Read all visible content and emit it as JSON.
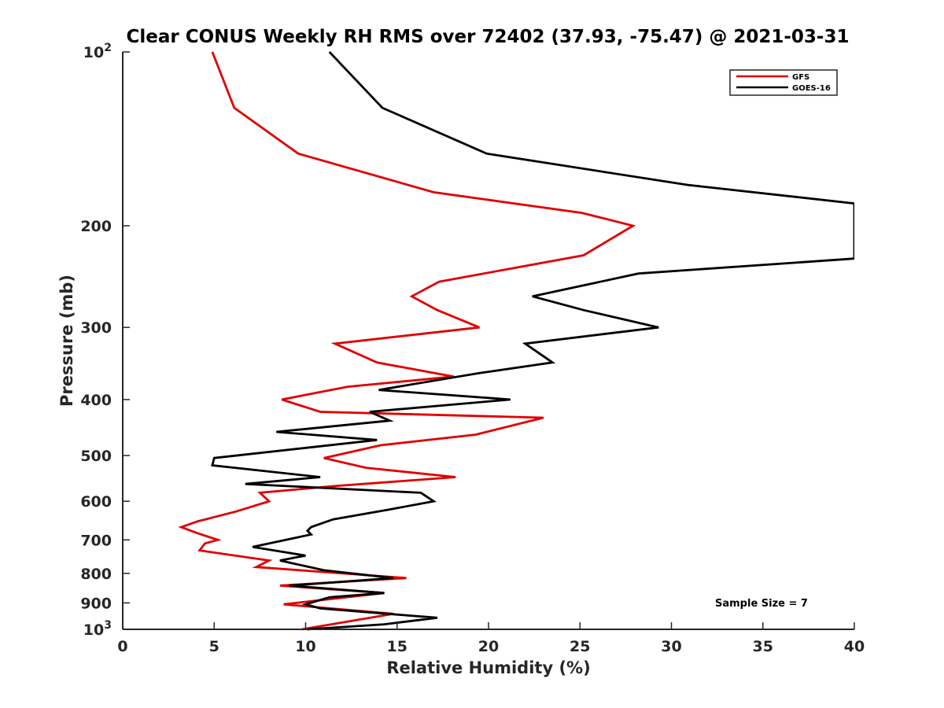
{
  "chart_data": {
    "type": "line",
    "title": "Clear CONUS Weekly RH RMS over 72402 (37.93, -75.47) @ 2021-03-31",
    "xlabel": "Relative Humidity (%)",
    "ylabel": "Pressure (mb)",
    "xlim": [
      0,
      40
    ],
    "ylim": [
      100,
      1000
    ],
    "yscale": "log",
    "y_reversed": true,
    "grid": false,
    "legend_position": "top-right",
    "x_ticks": [
      {
        "value": 0,
        "label": "0"
      },
      {
        "value": 5,
        "label": "5"
      },
      {
        "value": 10,
        "label": "10"
      },
      {
        "value": 15,
        "label": "15"
      },
      {
        "value": 20,
        "label": "20"
      },
      {
        "value": 25,
        "label": "25"
      },
      {
        "value": 30,
        "label": "30"
      },
      {
        "value": 35,
        "label": "35"
      },
      {
        "value": 40,
        "label": "40"
      }
    ],
    "y_ticks": [
      {
        "value": 100,
        "label": "10",
        "sup": "2"
      },
      {
        "value": 200,
        "label": "200",
        "sup": ""
      },
      {
        "value": 300,
        "label": "300",
        "sup": ""
      },
      {
        "value": 400,
        "label": "400",
        "sup": ""
      },
      {
        "value": 500,
        "label": "500",
        "sup": ""
      },
      {
        "value": 600,
        "label": "600",
        "sup": ""
      },
      {
        "value": 700,
        "label": "700",
        "sup": ""
      },
      {
        "value": 800,
        "label": "800",
        "sup": ""
      },
      {
        "value": 900,
        "label": "900",
        "sup": ""
      },
      {
        "value": 1000,
        "label": "10",
        "sup": "3"
      }
    ],
    "annotation": "Sample Size = 7",
    "series": [
      {
        "name": "GFS",
        "color": "#e00000",
        "points": [
          [
            4.9,
            100
          ],
          [
            6.1,
            125
          ],
          [
            9.6,
            150
          ],
          [
            17.0,
            175
          ],
          [
            25.1,
            190
          ],
          [
            27.9,
            200
          ],
          [
            25.2,
            225
          ],
          [
            17.3,
            250
          ],
          [
            15.8,
            265
          ],
          [
            17.2,
            280
          ],
          [
            19.5,
            300
          ],
          [
            11.6,
            320
          ],
          [
            13.9,
            345
          ],
          [
            18.1,
            365
          ],
          [
            12.3,
            380
          ],
          [
            8.7,
            400
          ],
          [
            10.8,
            420
          ],
          [
            23.0,
            430
          ],
          [
            19.3,
            460
          ],
          [
            14.1,
            480
          ],
          [
            11.0,
            505
          ],
          [
            13.3,
            525
          ],
          [
            18.2,
            545
          ],
          [
            11.5,
            565
          ],
          [
            7.5,
            580
          ],
          [
            8.0,
            600
          ],
          [
            6.2,
            625
          ],
          [
            4.1,
            650
          ],
          [
            3.2,
            665
          ],
          [
            4.0,
            680
          ],
          [
            5.2,
            700
          ],
          [
            4.5,
            710
          ],
          [
            4.2,
            730
          ],
          [
            8.0,
            760
          ],
          [
            7.3,
            780
          ],
          [
            15.5,
            815
          ],
          [
            8.6,
            840
          ],
          [
            14.3,
            865
          ],
          [
            8.8,
            905
          ],
          [
            14.8,
            940
          ],
          [
            9.8,
            1000
          ]
        ]
      },
      {
        "name": "GOES-16",
        "color": "#000000",
        "points": [
          [
            11.3,
            100
          ],
          [
            14.2,
            125
          ],
          [
            19.9,
            150
          ],
          [
            30.9,
            170
          ],
          [
            40.0,
            183
          ],
          [
            40.0,
            228
          ],
          [
            28.2,
            242
          ],
          [
            22.4,
            265
          ],
          [
            25.2,
            280
          ],
          [
            29.3,
            300
          ],
          [
            22.0,
            320
          ],
          [
            23.5,
            345
          ],
          [
            19.5,
            360
          ],
          [
            14.0,
            385
          ],
          [
            21.2,
            400
          ],
          [
            13.5,
            420
          ],
          [
            14.6,
            435
          ],
          [
            8.4,
            455
          ],
          [
            13.9,
            470
          ],
          [
            5.0,
            505
          ],
          [
            4.9,
            520
          ],
          [
            10.8,
            545
          ],
          [
            6.7,
            560
          ],
          [
            16.3,
            580
          ],
          [
            17.0,
            600
          ],
          [
            14.6,
            620
          ],
          [
            11.5,
            645
          ],
          [
            10.3,
            665
          ],
          [
            10.1,
            675
          ],
          [
            10.3,
            685
          ],
          [
            7.1,
            720
          ],
          [
            10.0,
            745
          ],
          [
            8.6,
            760
          ],
          [
            11.0,
            790
          ],
          [
            14.8,
            815
          ],
          [
            9.1,
            840
          ],
          [
            14.3,
            865
          ],
          [
            11.3,
            880
          ],
          [
            10.0,
            905
          ],
          [
            10.8,
            920
          ],
          [
            17.2,
            955
          ],
          [
            14.3,
            980
          ],
          [
            10.1,
            1000
          ]
        ]
      }
    ]
  }
}
